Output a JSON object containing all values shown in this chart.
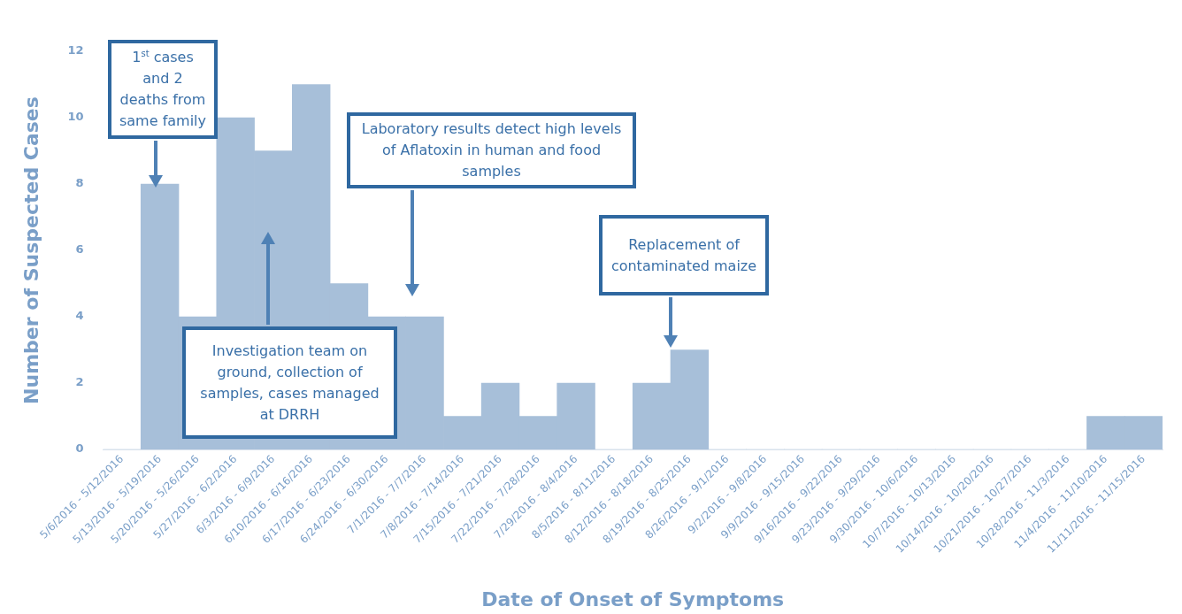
{
  "chart_data": {
    "type": "bar",
    "xlabel": "Date of Onset of Symptoms",
    "ylabel": "Number of Suspected Cases",
    "categories": [
      "5/6/2016 - 5/12/2016",
      "5/13/2016 - 5/19/2016",
      "5/20/2016 - 5/26/2016",
      "5/27/2016 - 6/2/2016",
      "6/3/2016 - 6/9/2016",
      "6/10/2016 - 6/16/2016",
      "6/17/2016 - 6/23/2016",
      "6/24/2016 - 6/30/2016",
      "7/1/2016 - 7/7/2016",
      "7/8/2016 - 7/14/2016",
      "7/15/2016 - 7/21/2016",
      "7/22/2016 - 7/28/2016",
      "7/29/2016 - 8/4/2016",
      "8/5/2016 - 8/11/2016",
      "8/12/2016 - 8/18/2016",
      "8/19/2016 - 8/25/2016",
      "8/26/2016 - 9/1/2016",
      "9/2/2016 - 9/8/2016",
      "9/9/2016 - 9/15/2016",
      "9/16/2016 - 9/22/2016",
      "9/23/2016 - 9/29/2016",
      "9/30/2016 - 10/6/2016",
      "10/7/2016 - 10/13/2016",
      "10/14/2016 - 10/20/2016",
      "10/21/2016 - 10/27/2016",
      "10/28/2016 - 11/3/2016",
      "11/4/2016 - 11/10/2016",
      "11/11/2016 - 11/15/2016"
    ],
    "values": [
      0,
      8,
      4,
      10,
      9,
      11,
      5,
      4,
      4,
      1,
      2,
      1,
      2,
      0,
      2,
      3,
      0,
      0,
      0,
      0,
      0,
      0,
      0,
      0,
      0,
      0,
      1,
      1
    ],
    "color": "#a7bfd9",
    "ylim": [
      0,
      12
    ],
    "yticks": [
      0,
      2,
      4,
      6,
      8,
      10,
      12
    ],
    "grid": false,
    "legend": false,
    "annotations": [
      "1$^{st}$ cases and 2 deaths from same family",
      "Investigation team on ground, collection of samples, cases managed at DRRH",
      "Laboratory results detect high levels of Aflatoxin in human and food samples",
      "Replacement of contaminated maize"
    ]
  }
}
